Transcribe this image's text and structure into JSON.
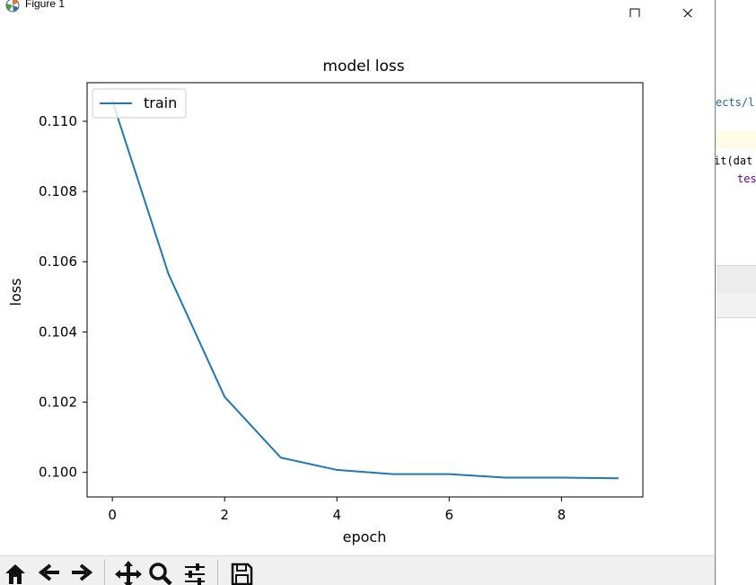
{
  "window": {
    "title": "Figure 1"
  },
  "chart_data": {
    "type": "line",
    "title": "model loss",
    "xlabel": "epoch",
    "ylabel": "loss",
    "x": [
      0,
      1,
      2,
      3,
      4,
      5,
      6,
      7,
      8,
      9
    ],
    "series": [
      {
        "name": "train",
        "color": "#1f77b4",
        "values": [
          0.11058,
          0.10565,
          0.10215,
          0.10042,
          0.10007,
          0.09995,
          0.09995,
          0.09985,
          0.09985,
          0.09983
        ]
      }
    ],
    "xlim": [
      -0.45,
      9.45
    ],
    "ylim": [
      0.0993,
      0.1111
    ],
    "xticks": [
      0,
      2,
      4,
      6,
      8
    ],
    "xtick_labels": [
      "0",
      "2",
      "4",
      "6",
      "8"
    ],
    "yticks": [
      0.1,
      0.102,
      0.104,
      0.106,
      0.108,
      0.11
    ],
    "ytick_labels": [
      "0.100",
      "0.102",
      "0.104",
      "0.106",
      "0.108",
      "0.110"
    ],
    "grid": false,
    "legend": "upper left"
  },
  "toolbar": {
    "buttons": [
      "home-icon",
      "back-icon",
      "forward-icon",
      "pan-icon",
      "zoom-icon",
      "configure-subplots-icon",
      "save-icon"
    ]
  },
  "editor": {
    "lines": [
      {
        "text": "ects/l",
        "color": "#1a6a8a"
      },
      {
        "text": "it(dat",
        "color": "#000000"
      },
      {
        "text": "tes",
        "color": "#660099"
      }
    ]
  }
}
